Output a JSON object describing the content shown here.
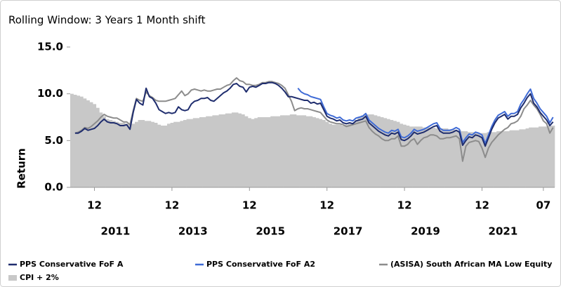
{
  "chart_data": {
    "type": "line",
    "title": "Rolling Window: 3 Years 1 Month shift",
    "y_label": "Return",
    "x": [
      "2010-05",
      "2010-06",
      "2010-07",
      "2010-08",
      "2010-09",
      "2010-10",
      "2010-11",
      "2010-12",
      "2011-01",
      "2011-02",
      "2011-03",
      "2011-04",
      "2011-05",
      "2011-06",
      "2011-07",
      "2011-08",
      "2011-09",
      "2011-10",
      "2011-11",
      "2011-12",
      "2012-01",
      "2012-02",
      "2012-03",
      "2012-04",
      "2012-05",
      "2012-06",
      "2012-07",
      "2012-08",
      "2012-09",
      "2012-10",
      "2012-11",
      "2012-12",
      "2013-01",
      "2013-02",
      "2013-03",
      "2013-04",
      "2013-05",
      "2013-06",
      "2013-07",
      "2013-08",
      "2013-09",
      "2013-10",
      "2013-11",
      "2013-12",
      "2014-01",
      "2014-02",
      "2014-03",
      "2014-04",
      "2014-05",
      "2014-06",
      "2014-07",
      "2014-08",
      "2014-09",
      "2014-10",
      "2014-11",
      "2014-12",
      "2015-01",
      "2015-02",
      "2015-03",
      "2015-04",
      "2015-05",
      "2015-06",
      "2015-07",
      "2015-08",
      "2015-09",
      "2015-10",
      "2015-11",
      "2015-12",
      "2016-01",
      "2016-02",
      "2016-03",
      "2016-04",
      "2016-05",
      "2016-06",
      "2016-07",
      "2016-08",
      "2016-09",
      "2016-10",
      "2016-11",
      "2016-12",
      "2017-01",
      "2017-02",
      "2017-03",
      "2017-04",
      "2017-05",
      "2017-06",
      "2017-07",
      "2017-08",
      "2017-09",
      "2017-10",
      "2017-11",
      "2017-12",
      "2018-01",
      "2018-02",
      "2018-03",
      "2018-04",
      "2018-05",
      "2018-06",
      "2018-07",
      "2018-08",
      "2018-09",
      "2018-10",
      "2018-11",
      "2018-12",
      "2019-01",
      "2019-02",
      "2019-03",
      "2019-04",
      "2019-05",
      "2019-06",
      "2019-07",
      "2019-08",
      "2019-09",
      "2019-10",
      "2019-11",
      "2019-12",
      "2020-01",
      "2020-02",
      "2020-03",
      "2020-04",
      "2020-05",
      "2020-06",
      "2020-07",
      "2020-08",
      "2020-09",
      "2020-10",
      "2020-11",
      "2020-12",
      "2021-01",
      "2021-02",
      "2021-03",
      "2021-04",
      "2021-05",
      "2021-06",
      "2021-07",
      "2021-08",
      "2021-09",
      "2021-10",
      "2021-11",
      "2021-12",
      "2022-01",
      "2022-02",
      "2022-03",
      "2022-04",
      "2022-05",
      "2022-06",
      "2022-07",
      "2022-08",
      "2022-09",
      "2022-10"
    ],
    "xticks": [
      {
        "value": "2010-12",
        "label": "12"
      },
      {
        "value": "2012-12",
        "label": "12"
      },
      {
        "value": "2014-12",
        "label": "12"
      },
      {
        "value": "2016-12",
        "label": "12"
      },
      {
        "value": "2018-12",
        "label": "12"
      },
      {
        "value": "2020-12",
        "label": "12"
      },
      {
        "value": "2022-07",
        "label": "07"
      }
    ],
    "year_labels": [
      2011,
      2013,
      2015,
      2017,
      2019,
      2021
    ],
    "ylim": [
      0,
      15
    ],
    "yticks": [
      {
        "value": 0,
        "label": "0.0"
      },
      {
        "value": 5,
        "label": "5.0"
      },
      {
        "value": 10,
        "label": "10.0"
      },
      {
        "value": 15,
        "label": "15.0"
      }
    ],
    "legend": "bottom",
    "series": [
      {
        "name": "PPS Conservative FoF A",
        "color": "#1f2d6e",
        "values": [
          null,
          5.8,
          5.8,
          6.0,
          6.3,
          6.1,
          6.2,
          6.3,
          6.6,
          7.0,
          7.3,
          7.0,
          6.9,
          6.9,
          6.8,
          6.6,
          6.6,
          6.7,
          6.2,
          8.0,
          9.4,
          9.0,
          8.8,
          10.6,
          9.7,
          9.5,
          9.0,
          8.3,
          8.1,
          7.9,
          8.0,
          7.9,
          8.0,
          8.6,
          8.3,
          8.2,
          8.3,
          8.9,
          9.2,
          9.3,
          9.5,
          9.5,
          9.6,
          9.3,
          9.2,
          9.5,
          9.8,
          10.1,
          10.3,
          10.6,
          11.0,
          11.1,
          10.8,
          10.7,
          10.2,
          10.7,
          10.8,
          10.7,
          10.9,
          11.1,
          11.1,
          11.2,
          11.2,
          11.1,
          10.9,
          10.6,
          10.2,
          9.7,
          9.7,
          9.6,
          9.5,
          9.4,
          9.3,
          9.3,
          9.0,
          9.1,
          8.9,
          9.0,
          8.3,
          7.6,
          7.4,
          7.3,
          7.1,
          7.2,
          6.9,
          6.8,
          6.9,
          6.8,
          7.1,
          7.2,
          7.3,
          7.6,
          6.9,
          6.6,
          6.3,
          6.0,
          5.8,
          5.6,
          5.5,
          5.8,
          5.7,
          5.9,
          5.1,
          5.0,
          5.2,
          5.5,
          5.9,
          5.7,
          5.8,
          5.9,
          6.1,
          6.3,
          6.5,
          6.6,
          6.0,
          5.8,
          5.8,
          5.8,
          5.9,
          6.1,
          5.9,
          4.5,
          5.0,
          5.4,
          5.3,
          5.6,
          5.5,
          5.3,
          4.4,
          5.3,
          6.2,
          6.9,
          7.4,
          7.6,
          7.8,
          7.3,
          7.6,
          7.6,
          7.8,
          8.5,
          9.0,
          9.6,
          10.0,
          9.0,
          8.6,
          8.0,
          7.6,
          7.2,
          6.6,
          7.0
        ]
      },
      {
        "name": "PPS Conservative FoF A2",
        "color": "#3f6bd6",
        "values": [
          null,
          null,
          null,
          null,
          null,
          null,
          null,
          null,
          null,
          null,
          null,
          null,
          null,
          null,
          null,
          null,
          null,
          null,
          null,
          null,
          null,
          null,
          null,
          null,
          null,
          null,
          null,
          null,
          null,
          null,
          null,
          null,
          null,
          null,
          null,
          null,
          null,
          null,
          null,
          null,
          null,
          null,
          null,
          null,
          null,
          null,
          null,
          null,
          null,
          null,
          null,
          null,
          null,
          null,
          null,
          null,
          null,
          null,
          null,
          null,
          null,
          null,
          null,
          null,
          null,
          null,
          null,
          null,
          null,
          null,
          10.6,
          10.2,
          10.0,
          9.9,
          9.7,
          9.6,
          9.5,
          9.4,
          8.6,
          7.9,
          7.7,
          7.6,
          7.4,
          7.5,
          7.2,
          7.1,
          7.2,
          7.1,
          7.4,
          7.5,
          7.6,
          7.9,
          7.2,
          6.9,
          6.6,
          6.3,
          6.1,
          5.9,
          5.8,
          6.1,
          6.0,
          6.2,
          5.4,
          5.3,
          5.5,
          5.8,
          6.2,
          6.0,
          6.1,
          6.2,
          6.4,
          6.6,
          6.8,
          6.9,
          6.3,
          6.1,
          6.1,
          6.1,
          6.2,
          6.4,
          6.2,
          4.8,
          5.3,
          5.7,
          5.6,
          5.9,
          5.8,
          5.6,
          4.7,
          5.6,
          6.5,
          7.2,
          7.7,
          7.9,
          8.1,
          7.6,
          7.9,
          7.9,
          8.1,
          8.9,
          9.4,
          10.0,
          10.5,
          9.5,
          9.0,
          8.4,
          8.0,
          7.6,
          6.9,
          7.5
        ]
      },
      {
        "name": "(ASISA) South African MA Low Equity",
        "color": "#8c8c8c",
        "values": [
          null,
          5.8,
          5.9,
          6.1,
          6.4,
          6.3,
          6.5,
          6.8,
          7.1,
          7.5,
          7.8,
          7.6,
          7.5,
          7.4,
          7.4,
          7.2,
          7.0,
          7.0,
          6.7,
          8.2,
          9.5,
          9.3,
          9.2,
          10.2,
          9.8,
          9.6,
          9.3,
          9.2,
          9.2,
          9.2,
          9.3,
          9.4,
          9.5,
          9.9,
          10.3,
          9.8,
          10.0,
          10.4,
          10.5,
          10.4,
          10.3,
          10.4,
          10.3,
          10.3,
          10.4,
          10.5,
          10.5,
          10.7,
          10.9,
          11.0,
          11.4,
          11.7,
          11.4,
          11.3,
          11.0,
          11.0,
          10.9,
          10.9,
          11.0,
          11.2,
          11.2,
          11.3,
          11.3,
          11.2,
          11.1,
          10.9,
          10.6,
          9.9,
          9.2,
          8.2,
          8.4,
          8.5,
          8.4,
          8.4,
          8.3,
          8.2,
          8.1,
          8.0,
          7.6,
          7.2,
          7.0,
          6.9,
          6.8,
          6.8,
          6.7,
          6.5,
          6.6,
          6.7,
          6.8,
          6.9,
          7.0,
          7.1,
          6.4,
          6.0,
          5.7,
          5.5,
          5.2,
          5.0,
          5.0,
          5.2,
          5.2,
          5.5,
          4.4,
          4.4,
          4.6,
          5.0,
          5.2,
          4.6,
          5.0,
          5.3,
          5.4,
          5.6,
          5.6,
          5.5,
          5.2,
          5.2,
          5.3,
          5.3,
          5.4,
          5.5,
          5.2,
          2.8,
          4.4,
          4.8,
          4.9,
          5.0,
          4.9,
          4.2,
          3.2,
          4.2,
          4.8,
          5.2,
          5.6,
          5.9,
          6.2,
          6.4,
          6.8,
          6.9,
          7.1,
          7.6,
          8.4,
          8.8,
          9.3,
          8.8,
          8.4,
          7.8,
          7.1,
          6.8,
          5.8,
          6.4
        ]
      },
      {
        "name": "CPI + 2%",
        "color": "#c8c8c8",
        "type": "bar",
        "values": [
          10.0,
          9.9,
          9.8,
          9.7,
          9.5,
          9.3,
          9.1,
          8.9,
          8.5,
          8.0,
          7.6,
          7.3,
          7.2,
          7.1,
          7.0,
          6.9,
          6.9,
          6.8,
          6.7,
          6.8,
          7.0,
          7.2,
          7.2,
          7.1,
          7.1,
          7.0,
          6.9,
          6.7,
          6.6,
          6.6,
          6.8,
          6.9,
          7.0,
          7.0,
          7.1,
          7.2,
          7.3,
          7.3,
          7.4,
          7.4,
          7.5,
          7.5,
          7.6,
          7.6,
          7.7,
          7.7,
          7.8,
          7.8,
          7.9,
          7.9,
          8.0,
          8.0,
          7.9,
          7.8,
          7.6,
          7.4,
          7.3,
          7.4,
          7.5,
          7.5,
          7.5,
          7.5,
          7.6,
          7.6,
          7.6,
          7.7,
          7.7,
          7.7,
          7.8,
          7.8,
          7.7,
          7.7,
          7.7,
          7.6,
          7.6,
          7.5,
          7.4,
          7.3,
          7.2,
          7.0,
          6.8,
          6.7,
          6.7,
          6.7,
          6.6,
          6.7,
          6.8,
          6.9,
          7.2,
          7.5,
          7.7,
          7.8,
          7.8,
          7.8,
          7.7,
          7.6,
          7.5,
          7.4,
          7.3,
          7.2,
          7.1,
          7.0,
          6.8,
          6.7,
          6.6,
          6.5,
          6.5,
          6.5,
          6.5,
          6.4,
          6.4,
          6.4,
          6.4,
          6.3,
          6.3,
          6.3,
          6.3,
          6.2,
          6.2,
          6.1,
          6.1,
          6.0,
          6.0,
          5.9,
          5.9,
          5.8,
          5.8,
          5.8,
          5.8,
          5.9,
          5.9,
          5.9,
          6.0,
          6.0,
          6.0,
          6.0,
          6.1,
          6.1,
          6.1,
          6.2,
          6.2,
          6.3,
          6.4,
          6.4,
          6.4,
          6.5,
          6.5,
          6.5,
          6.6,
          6.6
        ]
      }
    ]
  }
}
